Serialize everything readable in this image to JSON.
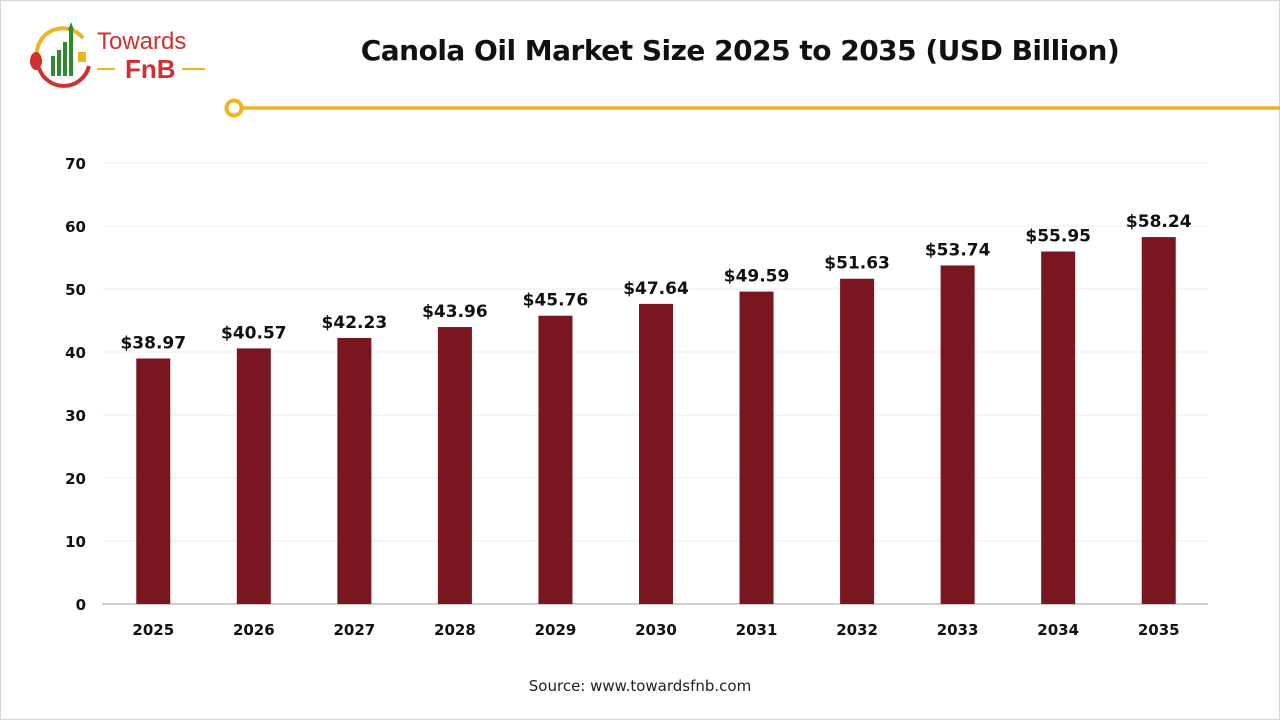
{
  "logo": {
    "text_top": "Towards",
    "text_bottom": "FnB"
  },
  "source": "Source: www.towardsfnb.com",
  "colors": {
    "bar": "#7a1620",
    "accent_line": "#f0b323",
    "logo_red": "#d03030",
    "logo_green": "#2e8b2e"
  },
  "chart_data": {
    "type": "bar",
    "title": "Canola Oil Market Size 2025 to 2035 (USD Billion)",
    "categories": [
      "2025",
      "2026",
      "2027",
      "2028",
      "2029",
      "2030",
      "2031",
      "2032",
      "2033",
      "2034",
      "2035"
    ],
    "values": [
      38.97,
      40.57,
      42.23,
      43.96,
      45.76,
      47.64,
      49.59,
      51.63,
      53.74,
      55.95,
      58.24
    ],
    "data_labels": [
      "$38.97",
      "$40.57",
      "$42.23",
      "$43.96",
      "$45.76",
      "$47.64",
      "$49.59",
      "$51.63",
      "$53.74",
      "$55.95",
      "$58.24"
    ],
    "ylim": [
      0,
      70
    ],
    "yticks": [
      "0",
      "10",
      "20",
      "30",
      "40",
      "50",
      "60",
      "70"
    ],
    "xlabel": "",
    "ylabel": "",
    "grid": true,
    "legend": "none"
  }
}
